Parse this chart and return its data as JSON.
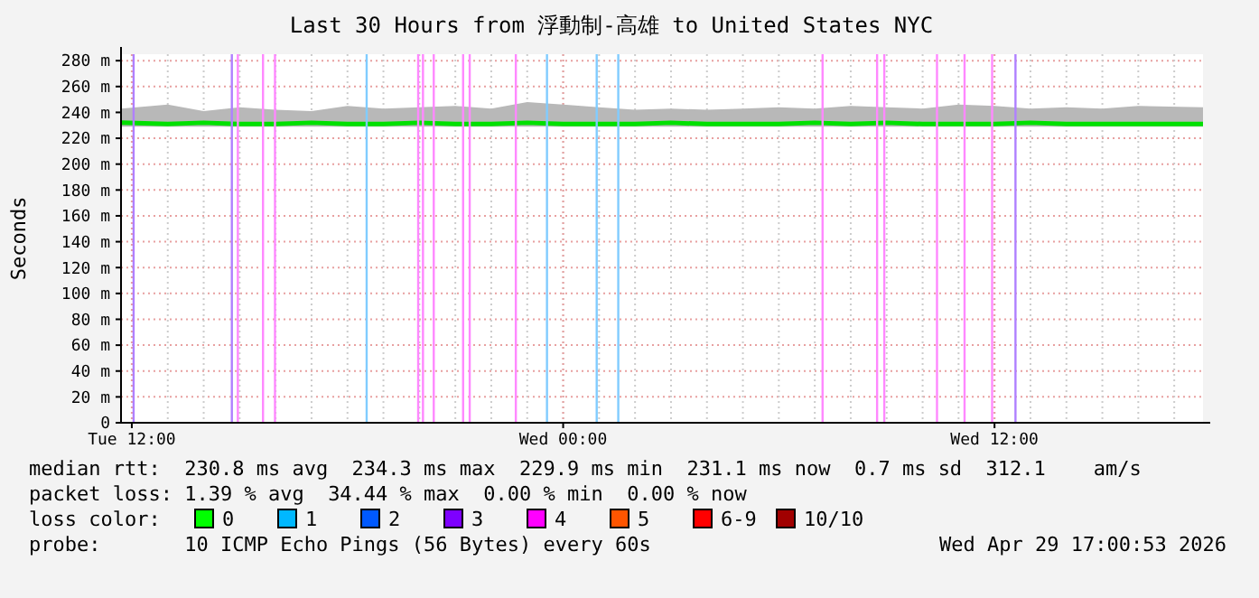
{
  "chart_data": {
    "type": "line",
    "title": "Last 30 Hours from 浮動制-高雄 to United States NYC",
    "ylabel": "Seconds",
    "xlim": [
      "2026-04-28T11:42",
      "2026-04-29T17:48"
    ],
    "xticks": [
      {
        "value": "2026-04-28T12:00",
        "label": "Tue 12:00"
      },
      {
        "value": "2026-04-29T00:00",
        "label": "Wed 00:00"
      },
      {
        "value": "2026-04-29T12:00",
        "label": "Wed 12:00"
      }
    ],
    "ylim": [
      0,
      285
    ],
    "yticks": [
      0,
      {
        "value": 20,
        "label": "20 m"
      },
      {
        "value": 40,
        "label": "40 m"
      },
      {
        "value": 60,
        "label": "60 m"
      },
      {
        "value": 80,
        "label": "80 m"
      },
      {
        "value": 100,
        "label": "100 m"
      },
      {
        "value": 120,
        "label": "120 m"
      },
      {
        "value": 140,
        "label": "140 m"
      },
      {
        "value": 160,
        "label": "160 m"
      },
      {
        "value": 180,
        "label": "180 m"
      },
      {
        "value": 200,
        "label": "200 m"
      },
      {
        "value": 220,
        "label": "220 m"
      },
      {
        "value": 240,
        "label": "240 m"
      },
      {
        "value": 260,
        "label": "260 m"
      },
      {
        "value": 280,
        "label": "280 m"
      }
    ],
    "grid": true,
    "series": [
      {
        "color": "#00e000",
        "x": [
          "2026-04-28T11:42",
          "2026-04-28T13:00",
          "2026-04-28T14:00",
          "2026-04-28T15:00",
          "2026-04-28T16:00",
          "2026-04-28T17:00",
          "2026-04-28T18:00",
          "2026-04-28T19:00",
          "2026-04-28T20:00",
          "2026-04-28T21:00",
          "2026-04-28T22:00",
          "2026-04-28T23:00",
          "2026-04-29T00:00",
          "2026-04-29T01:00",
          "2026-04-29T02:00",
          "2026-04-29T03:00",
          "2026-04-29T04:00",
          "2026-04-29T05:00",
          "2026-04-29T06:00",
          "2026-04-29T07:00",
          "2026-04-29T08:00",
          "2026-04-29T09:00",
          "2026-04-29T10:00",
          "2026-04-29T11:00",
          "2026-04-29T12:00",
          "2026-04-29T13:00",
          "2026-04-29T14:00",
          "2026-04-29T15:00",
          "2026-04-29T16:00",
          "2026-04-29T17:48"
        ],
        "values": [
          232,
          231,
          232,
          231,
          231,
          232,
          231,
          231,
          232,
          231,
          231,
          232,
          231,
          231,
          231,
          232,
          231,
          231,
          231,
          232,
          231,
          232,
          231,
          231,
          231,
          232,
          231,
          231,
          231,
          231
        ],
        "lower": [
          229,
          229,
          229,
          229,
          229,
          229,
          229,
          229,
          229,
          229,
          229,
          229,
          229,
          229,
          229,
          229,
          229,
          229,
          229,
          229,
          229,
          229,
          229,
          229,
          229,
          229,
          229,
          229,
          229,
          229
        ],
        "upper": [
          243,
          246,
          241,
          244,
          242,
          241,
          245,
          243,
          244,
          245,
          243,
          248,
          246,
          244,
          242,
          243,
          242,
          243,
          244,
          243,
          245,
          244,
          243,
          246,
          245,
          243,
          244,
          243,
          245,
          244
        ]
      }
    ],
    "ref_lines": [
      {
        "axis": "x",
        "value": "2026-04-28T12:03",
        "color": "#b080ff"
      },
      {
        "axis": "x",
        "value": "2026-04-28T14:47",
        "color": "#b080ff"
      },
      {
        "axis": "x",
        "value": "2026-04-28T14:57",
        "color": "#ff88ff"
      },
      {
        "axis": "x",
        "value": "2026-04-28T15:39",
        "color": "#ff88ff"
      },
      {
        "axis": "x",
        "value": "2026-04-28T15:59",
        "color": "#ff88ff"
      },
      {
        "axis": "x",
        "value": "2026-04-28T18:32",
        "color": "#80ccff"
      },
      {
        "axis": "x",
        "value": "2026-04-28T19:58",
        "color": "#ff88ff"
      },
      {
        "axis": "x",
        "value": "2026-04-28T20:06",
        "color": "#ff88ff"
      },
      {
        "axis": "x",
        "value": "2026-04-28T20:24",
        "color": "#ff88ff"
      },
      {
        "axis": "x",
        "value": "2026-04-28T21:13",
        "color": "#ff88ff"
      },
      {
        "axis": "x",
        "value": "2026-04-28T21:24",
        "color": "#ff88ff"
      },
      {
        "axis": "x",
        "value": "2026-04-28T22:41",
        "color": "#ff88ff"
      },
      {
        "axis": "x",
        "value": "2026-04-28T23:33",
        "color": "#80ccff"
      },
      {
        "axis": "x",
        "value": "2026-04-29T00:56",
        "color": "#80ccff"
      },
      {
        "axis": "x",
        "value": "2026-04-29T01:32",
        "color": "#80ccff"
      },
      {
        "axis": "x",
        "value": "2026-04-29T07:13",
        "color": "#ff88ff"
      },
      {
        "axis": "x",
        "value": "2026-04-29T08:44",
        "color": "#ff88ff"
      },
      {
        "axis": "x",
        "value": "2026-04-29T08:56",
        "color": "#ff88ff"
      },
      {
        "axis": "x",
        "value": "2026-04-29T10:24",
        "color": "#ff88ff"
      },
      {
        "axis": "x",
        "value": "2026-04-29T11:10",
        "color": "#ff88ff"
      },
      {
        "axis": "x",
        "value": "2026-04-29T11:56",
        "color": "#ff88ff"
      },
      {
        "axis": "x",
        "value": "2026-04-29T12:35",
        "color": "#b080ff"
      }
    ],
    "annotations": [
      "median rtt:  230.8 ms avg  234.3 ms max  229.9 ms min  231.1 ms now  0.7 ms sd  312.1    am/s",
      "packet loss: 1.39 % avg  34.44 % max  0.00 % min  0.00 % now",
      "loss color:",
      "0",
      "1",
      "2",
      "3",
      "4",
      "5",
      "6-9",
      "10/10",
      "probe:       10 ICMP Echo Pings (56 Bytes) every 60s",
      "Wed Apr 29 17:00:53 2026"
    ]
  }
}
